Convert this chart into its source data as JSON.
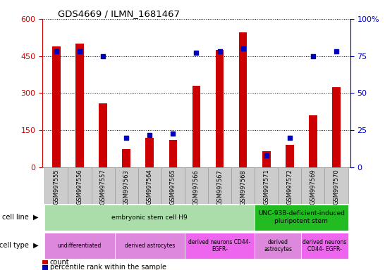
{
  "title": "GDS4669 / ILMN_1681467",
  "samples": [
    "GSM997555",
    "GSM997556",
    "GSM997557",
    "GSM997563",
    "GSM997564",
    "GSM997565",
    "GSM997566",
    "GSM997567",
    "GSM997568",
    "GSM997571",
    "GSM997572",
    "GSM997569",
    "GSM997570"
  ],
  "counts": [
    490,
    500,
    260,
    75,
    120,
    110,
    330,
    475,
    545,
    65,
    90,
    210,
    325
  ],
  "percentiles": [
    78,
    78,
    75,
    20,
    22,
    23,
    77,
    78,
    80,
    8,
    20,
    75,
    78
  ],
  "ylim_left": [
    0,
    600
  ],
  "ylim_right": [
    0,
    100
  ],
  "yticks_left": [
    0,
    150,
    300,
    450,
    600
  ],
  "ytick_labels_left": [
    "0",
    "150",
    "300",
    "450",
    "600"
  ],
  "yticks_right": [
    0,
    25,
    50,
    75,
    100
  ],
  "ytick_labels_right": [
    "0",
    "25",
    "50",
    "75",
    "100%"
  ],
  "bar_color": "#cc0000",
  "dot_color": "#0000bb",
  "cell_line_groups": [
    {
      "label": "embryonic stem cell H9",
      "start": 0,
      "end": 8,
      "color": "#aaddaa"
    },
    {
      "label": "UNC-93B-deficient-induced\npluripotent stem",
      "start": 9,
      "end": 12,
      "color": "#22bb22"
    }
  ],
  "cell_type_groups": [
    {
      "label": "undifferentiated",
      "start": 0,
      "end": 2,
      "color": "#dd88dd"
    },
    {
      "label": "derived astrocytes",
      "start": 3,
      "end": 5,
      "color": "#dd88dd"
    },
    {
      "label": "derived neurons CD44-\nEGFR-",
      "start": 6,
      "end": 8,
      "color": "#ee66ee"
    },
    {
      "label": "derived\nastrocytes",
      "start": 9,
      "end": 10,
      "color": "#dd88dd"
    },
    {
      "label": "derived neurons\nCD44- EGFR-",
      "start": 11,
      "end": 12,
      "color": "#ee66ee"
    }
  ],
  "legend_count_color": "#cc0000",
  "legend_pct_color": "#0000bb",
  "tick_color_left": "#cc0000",
  "tick_color_right": "#0000bb",
  "bg_color": "#ffffff",
  "grid_color": "#000000",
  "bar_width": 0.35
}
